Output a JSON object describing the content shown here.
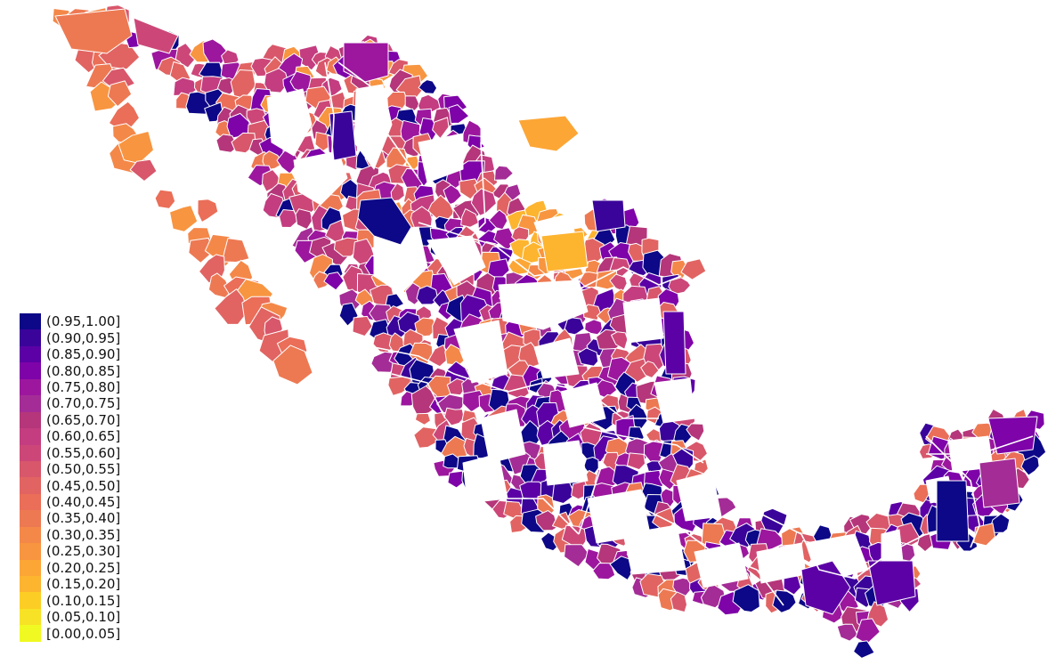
{
  "map": {
    "region": "Mexico",
    "unit": "municipality",
    "border_color": "#ffffff",
    "no_data_color": "#ffffff"
  },
  "legend": {
    "items": [
      {
        "label": "(0.95,1.00]",
        "color": "#0d0887"
      },
      {
        "label": "(0.90,0.95]",
        "color": "#3a049a"
      },
      {
        "label": "(0.85,0.90]",
        "color": "#5c01a6"
      },
      {
        "label": "(0.80,0.85]",
        "color": "#7e03a8"
      },
      {
        "label": "(0.75,0.80]",
        "color": "#9c179e"
      },
      {
        "label": "(0.70,0.75]",
        "color": "#a42c96"
      },
      {
        "label": "(0.65,0.70]",
        "color": "#b5367a"
      },
      {
        "label": "(0.60,0.65]",
        "color": "#c33d80"
      },
      {
        "label": "(0.55,0.60]",
        "color": "#cc4778"
      },
      {
        "label": "(0.50,0.55]",
        "color": "#d8576b"
      },
      {
        "label": "(0.45,0.50]",
        "color": "#e16462"
      },
      {
        "label": "(0.40,0.45]",
        "color": "#ea6e58"
      },
      {
        "label": "(0.35,0.40]",
        "color": "#ed7953"
      },
      {
        "label": "(0.30,0.35]",
        "color": "#f48849"
      },
      {
        "label": "(0.25,0.30]",
        "color": "#f89540"
      },
      {
        "label": "(0.20,0.25]",
        "color": "#fca636"
      },
      {
        "label": "(0.15,0.20]",
        "color": "#fdb42f"
      },
      {
        "label": "(0.10,0.15]",
        "color": "#fcce25"
      },
      {
        "label": "(0.05,0.10]",
        "color": "#f7e225"
      },
      {
        "label": "[0.00,0.05]",
        "color": "#f0f921"
      }
    ]
  }
}
